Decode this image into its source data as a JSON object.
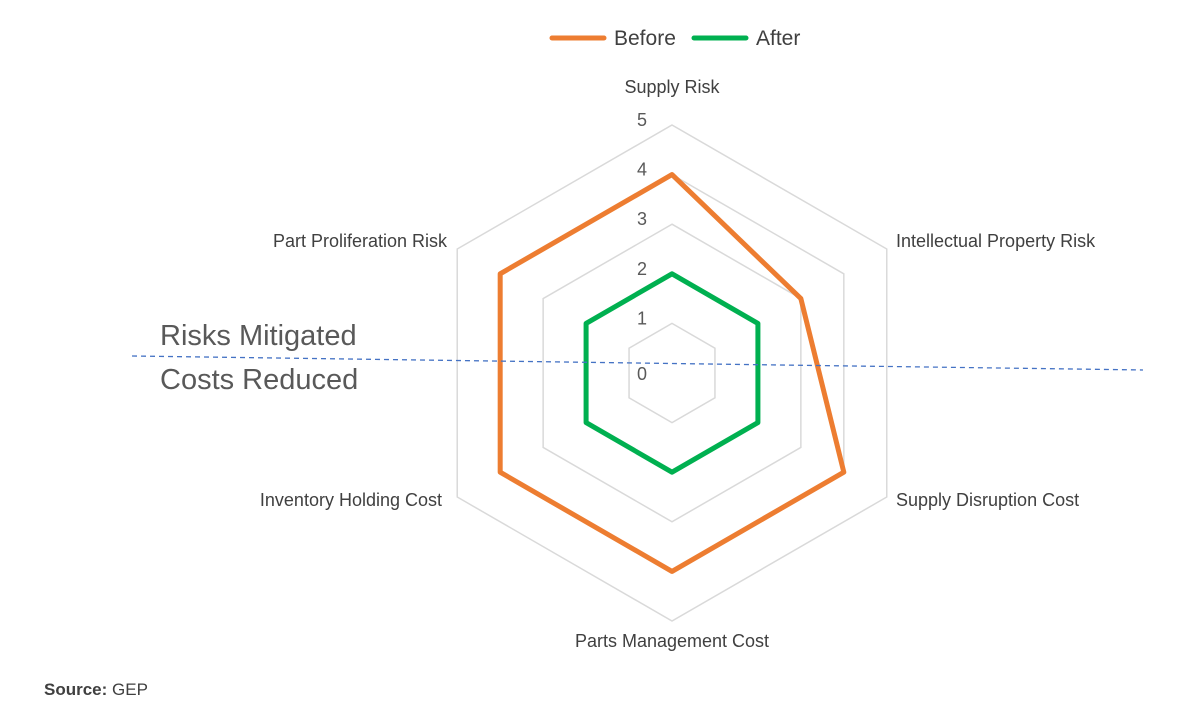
{
  "chart_data": {
    "type": "radar",
    "categories": [
      "Supply Risk",
      "Intellectual Property Risk",
      "Supply Disruption Cost",
      "Parts Management Cost",
      "Inventory Holding Cost",
      "Part Proliferation Risk"
    ],
    "series": [
      {
        "name": "Before",
        "color": "#ED7D31",
        "values": [
          4,
          3,
          4,
          4,
          4,
          4
        ]
      },
      {
        "name": "After",
        "color": "#00B050",
        "values": [
          2,
          2,
          2,
          2,
          2,
          2
        ]
      }
    ],
    "r_ticks": [
      "0",
      "1",
      "2",
      "3",
      "4",
      "5"
    ],
    "r_range": [
      0,
      5
    ],
    "grid_color": "#D9D9D9",
    "legend_position": "top-center",
    "annotations": {
      "upper_zone": "Risks Mitigated",
      "lower_zone": "Costs Reduced",
      "divider_color": "#4472C4"
    }
  },
  "source": {
    "label": "Source:",
    "value": "GEP"
  }
}
